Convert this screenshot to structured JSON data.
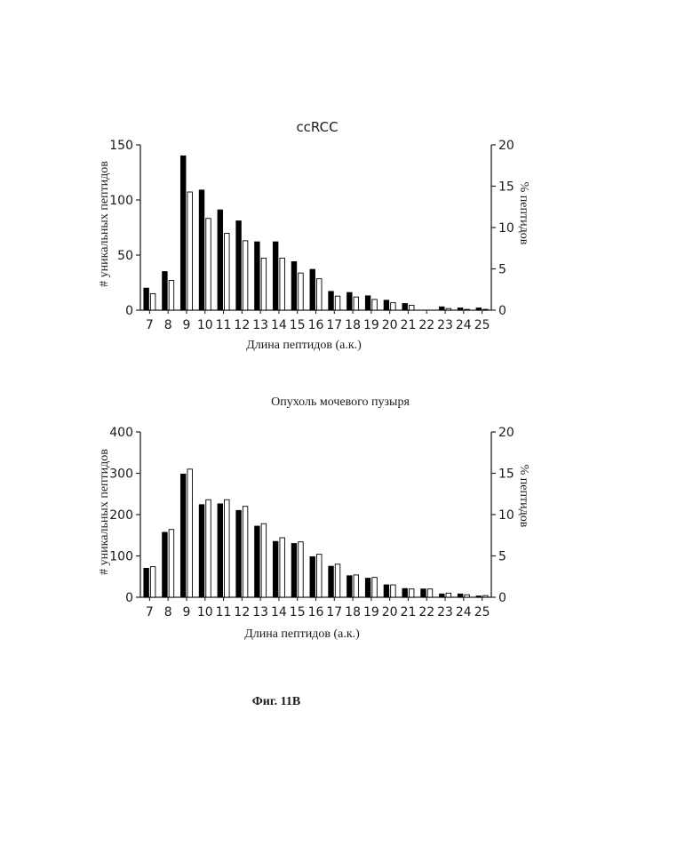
{
  "figure_caption": "Фиг. 11В",
  "chart_data": [
    {
      "type": "bar",
      "title": "ccRCC",
      "xlabel": "Длина пептидов (а.к.)",
      "ylabel_left": "# уникальных пептидов",
      "ylabel_right": "% пептидов",
      "categories": [
        "7",
        "8",
        "9",
        "10",
        "11",
        "12",
        "13",
        "14",
        "15",
        "16",
        "17",
        "18",
        "19",
        "20",
        "21",
        "22",
        "23",
        "24",
        "25"
      ],
      "ylim_left": [
        0,
        150
      ],
      "yticks_left": [
        0,
        50,
        100,
        150
      ],
      "ylim_right": [
        0,
        20
      ],
      "yticks_right": [
        0,
        5,
        10,
        15,
        20
      ],
      "series": [
        {
          "axis": "left",
          "fill": "#000000",
          "values": [
            20,
            35,
            140,
            109,
            91,
            81,
            62,
            62,
            44,
            37,
            17,
            16,
            13,
            9,
            6,
            0,
            3,
            2,
            2
          ]
        },
        {
          "axis": "right",
          "fill": "#ffffff",
          "values": [
            2.0,
            3.6,
            14.3,
            11.1,
            9.3,
            8.4,
            6.3,
            6.3,
            4.5,
            3.8,
            1.7,
            1.6,
            1.3,
            0.9,
            0.6,
            0,
            0.2,
            0.1,
            0.1
          ]
        }
      ]
    },
    {
      "type": "bar",
      "title": "Опухоль мочевого пузыря",
      "xlabel": "Длина пептидов (а.к.)",
      "ylabel_left": "# уникальных пептидов",
      "ylabel_right": "% пептидов",
      "categories": [
        "7",
        "8",
        "9",
        "10",
        "11",
        "12",
        "13",
        "14",
        "15",
        "16",
        "17",
        "18",
        "19",
        "20",
        "21",
        "22",
        "23",
        "24",
        "25"
      ],
      "ylim_left": [
        0,
        400
      ],
      "yticks_left": [
        0,
        100,
        200,
        300,
        400
      ],
      "ylim_right": [
        0,
        20
      ],
      "yticks_right": [
        0,
        5,
        10,
        15,
        20
      ],
      "series": [
        {
          "axis": "left",
          "fill": "#000000",
          "values": [
            70,
            157,
            298,
            224,
            226,
            210,
            172,
            135,
            130,
            98,
            75,
            52,
            46,
            30,
            21,
            20,
            8,
            8,
            3
          ]
        },
        {
          "axis": "right",
          "fill": "#ffffff",
          "values": [
            3.7,
            8.2,
            15.5,
            11.8,
            11.8,
            11.0,
            8.9,
            7.2,
            6.7,
            5.2,
            4.0,
            2.7,
            2.4,
            1.5,
            1.0,
            1.0,
            0.5,
            0.3,
            0.2
          ]
        }
      ]
    }
  ]
}
